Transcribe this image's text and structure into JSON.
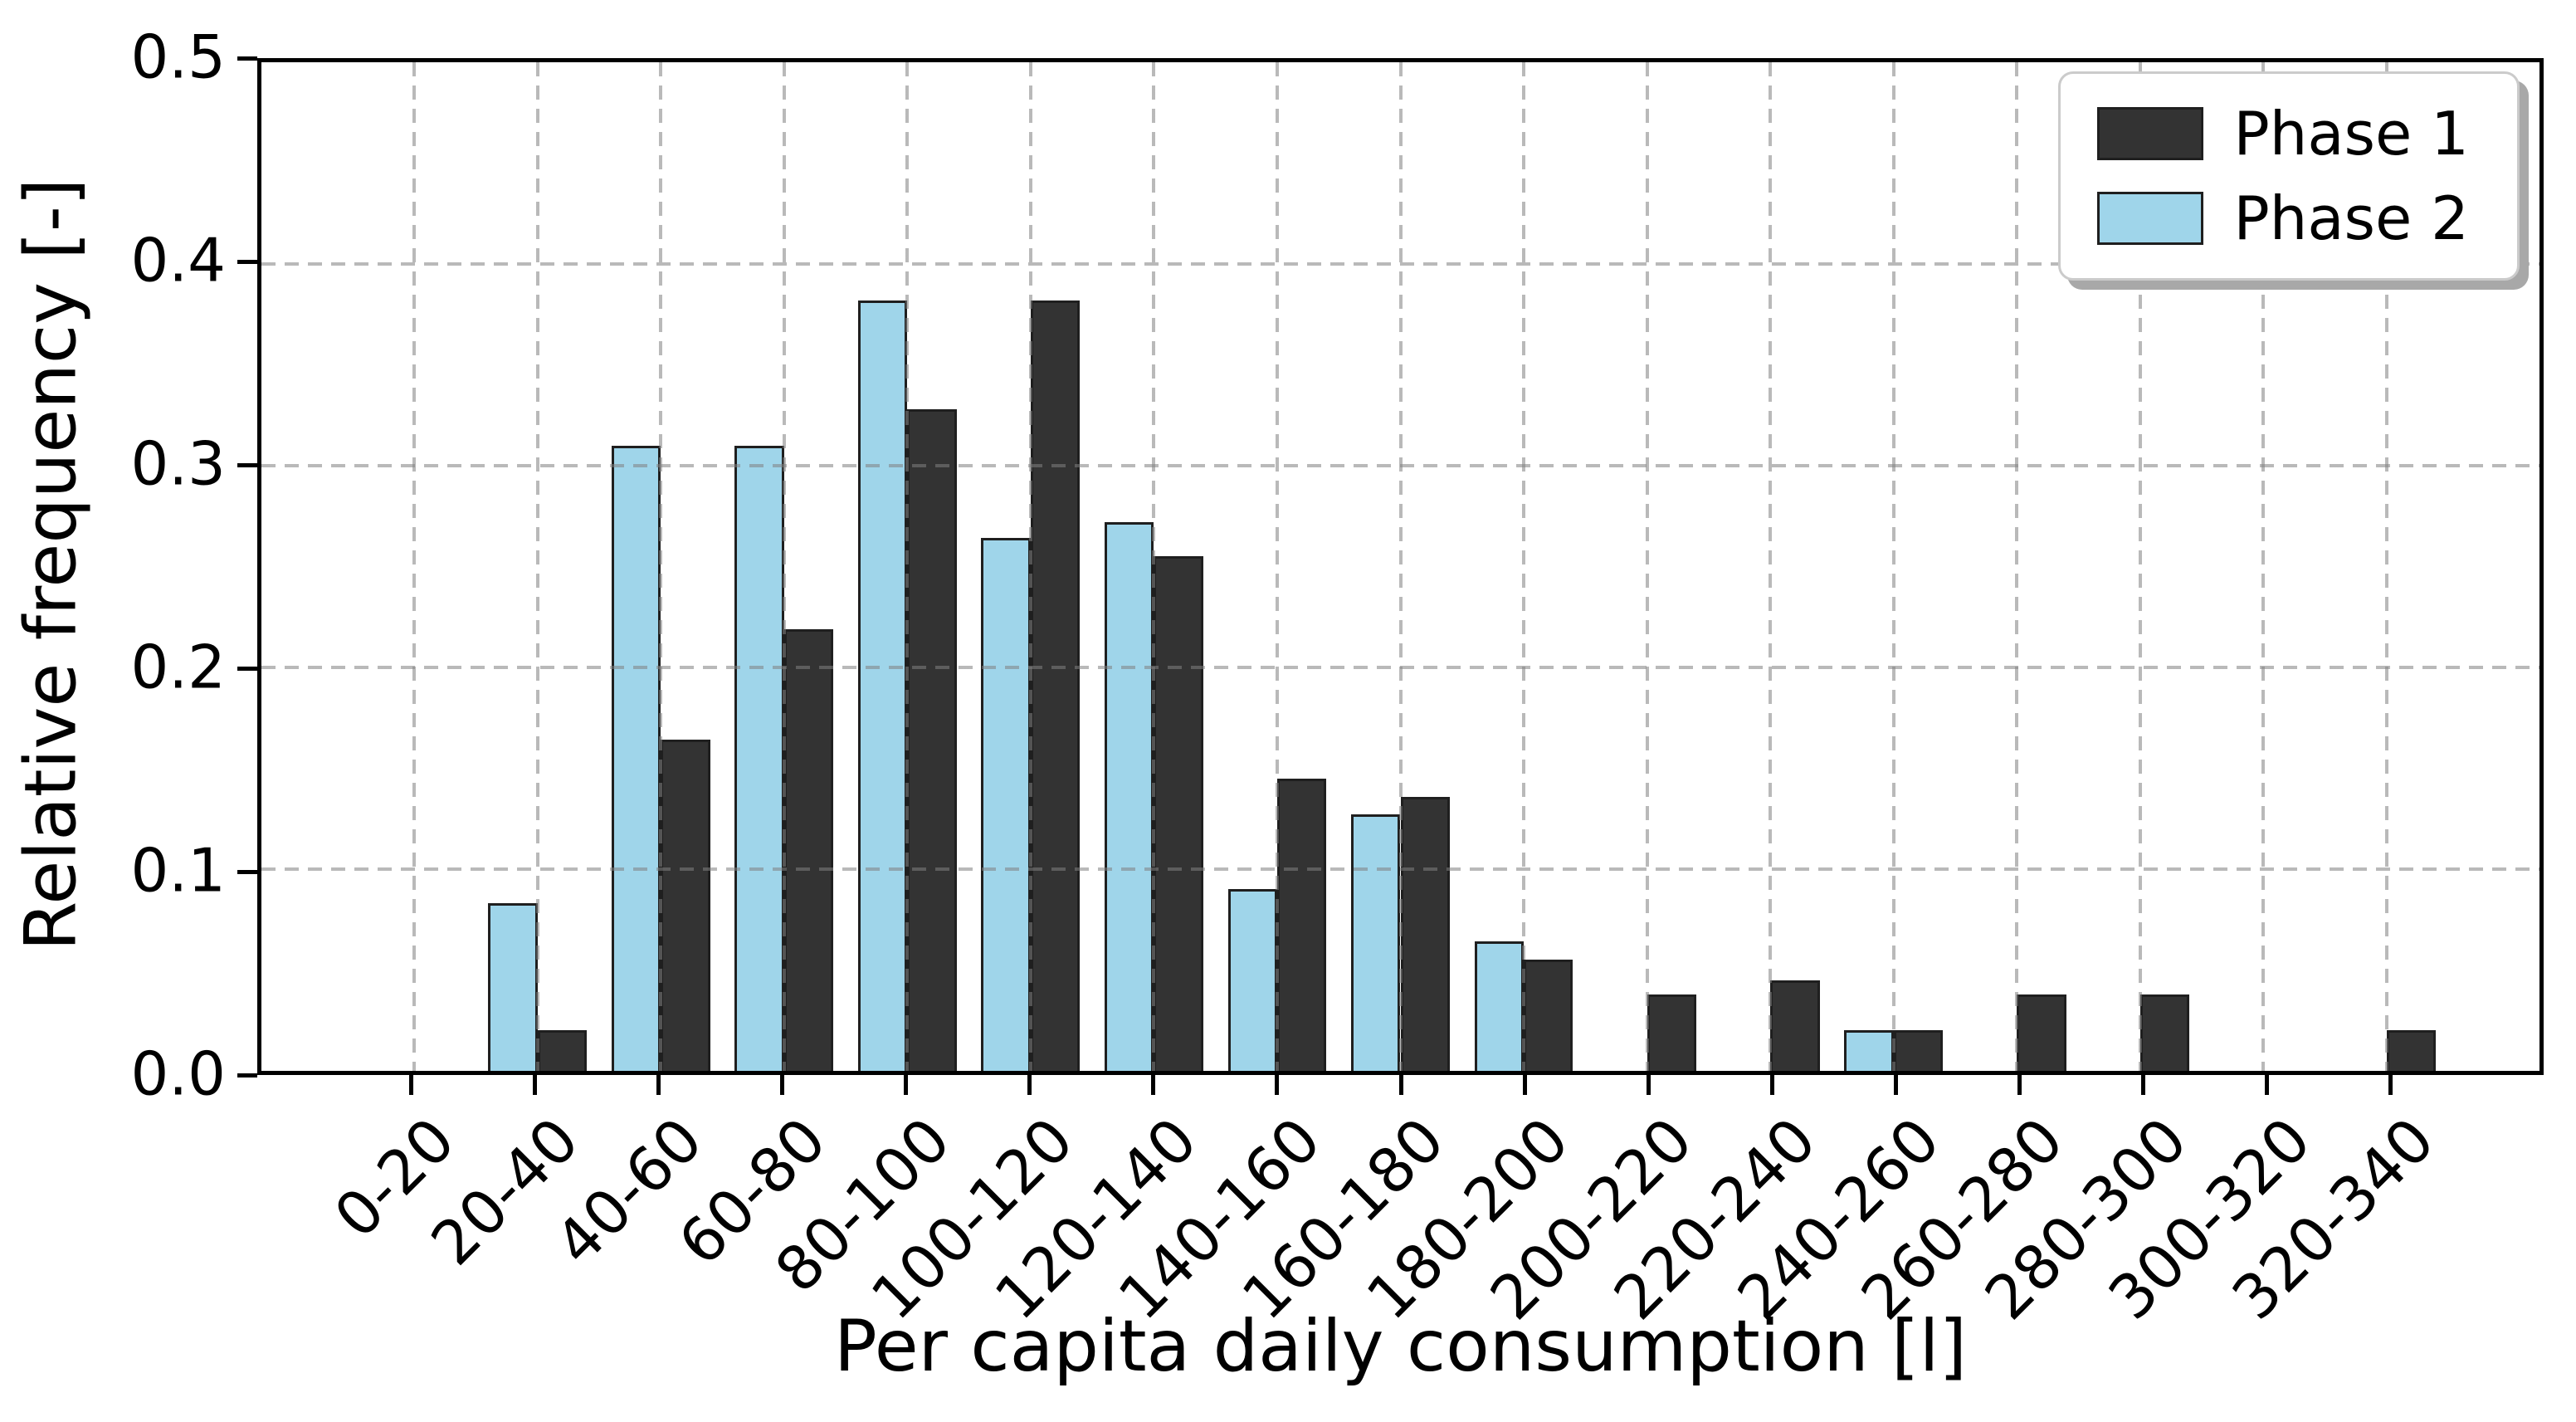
{
  "chart_data": {
    "type": "bar",
    "title": "",
    "xlabel": "Per capita daily consumption [l]",
    "ylabel": "Relative frequency [-]",
    "categories": [
      "0-20",
      "20-40",
      "40-60",
      "60-80",
      "80-100",
      "100-120",
      "120-140",
      "140-160",
      "160-180",
      "180-200",
      "200-220",
      "220-240",
      "240-260",
      "260-280",
      "280-300",
      "300-320",
      "320-340"
    ],
    "series": [
      {
        "name": "Phase 1",
        "color": "#333333",
        "edge_color": "#1f1f1f",
        "offset": "right",
        "values": [
          0,
          0.02,
          0.164,
          0.219,
          0.328,
          0.382,
          0.255,
          0.145,
          0.136,
          0.055,
          0.038,
          0.045,
          0.02,
          0.038,
          0.038,
          0,
          0.02
        ]
      },
      {
        "name": "Phase 2",
        "color": "#9fd5ea",
        "edge_color": "#1f1f1f",
        "offset": "left",
        "values": [
          0,
          0.083,
          0.31,
          0.31,
          0.382,
          0.264,
          0.272,
          0.09,
          0.127,
          0.064,
          0,
          0,
          0.02,
          0,
          0,
          0,
          0
        ]
      }
    ],
    "ylim": [
      0,
      0.5
    ],
    "yticks": [
      "0.0",
      "0.1",
      "0.2",
      "0.3",
      "0.4",
      "0.5"
    ],
    "grid": {
      "visible": true,
      "style": "dashed",
      "color": "#b3b3b3",
      "on_top_of_bars": true
    },
    "legend": {
      "position": "upper right",
      "items": [
        "Phase 1",
        "Phase 2"
      ]
    }
  }
}
